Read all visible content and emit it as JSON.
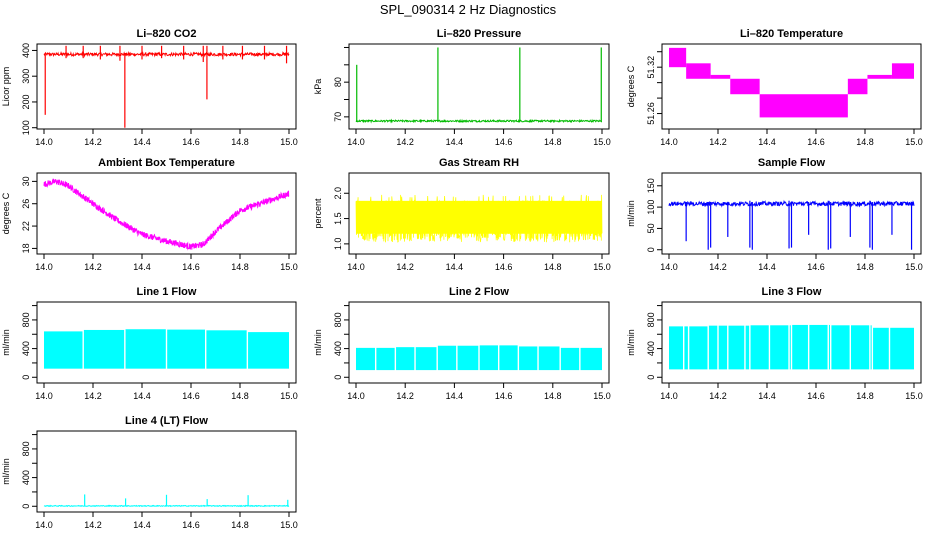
{
  "title": "SPL_090314  2 Hz Diagnostics",
  "x_range": [
    14.0,
    15.0
  ],
  "x_ticks": [
    "14.0",
    "14.2",
    "14.4",
    "14.6",
    "14.8",
    "15.0"
  ],
  "chart_data": [
    {
      "type": "line",
      "key": "co2",
      "title": "Li–820 CO2",
      "ylabel": "Licor ppm",
      "color": "#ff0000",
      "ylim": [
        95,
        425
      ],
      "yticks": [
        100,
        200,
        300,
        400
      ],
      "ytick_labels": [
        "100",
        "200",
        "300",
        "400"
      ],
      "base": 385,
      "noise": 6,
      "spikes": [
        {
          "x": 14.005,
          "lo": 150,
          "hi": 390
        },
        {
          "x": 14.09,
          "lo": 370,
          "hi": 418
        },
        {
          "x": 14.16,
          "lo": 370,
          "hi": 418
        },
        {
          "x": 14.23,
          "lo": 365,
          "hi": 418
        },
        {
          "x": 14.31,
          "lo": 360,
          "hi": 418
        },
        {
          "x": 14.33,
          "lo": 100,
          "hi": 390
        },
        {
          "x": 14.4,
          "lo": 365,
          "hi": 418
        },
        {
          "x": 14.48,
          "lo": 370,
          "hi": 418
        },
        {
          "x": 14.57,
          "lo": 365,
          "hi": 418
        },
        {
          "x": 14.65,
          "lo": 355,
          "hi": 418
        },
        {
          "x": 14.665,
          "lo": 210,
          "hi": 418
        },
        {
          "x": 14.73,
          "lo": 365,
          "hi": 418
        },
        {
          "x": 14.81,
          "lo": 365,
          "hi": 418
        },
        {
          "x": 14.9,
          "lo": 365,
          "hi": 418
        },
        {
          "x": 14.99,
          "lo": 350,
          "hi": 418
        }
      ]
    },
    {
      "type": "line",
      "key": "pressure",
      "title": "Li–820 Pressure",
      "ylabel": "kPa",
      "color": "#00bb00",
      "ylim": [
        66.5,
        91
      ],
      "yticks": [
        70,
        75,
        80,
        85,
        90
      ],
      "ytick_labels": [
        "70",
        "",
        "80",
        "",
        ""
      ],
      "base": 68.8,
      "noise": 0.25,
      "spikes": [
        {
          "x": 14.003,
          "lo": 68.5,
          "hi": 85
        },
        {
          "x": 14.333,
          "lo": 68.5,
          "hi": 90
        },
        {
          "x": 14.666,
          "lo": 68.5,
          "hi": 90
        },
        {
          "x": 14.997,
          "lo": 68.5,
          "hi": 90
        }
      ]
    },
    {
      "type": "band",
      "key": "li_temp",
      "title": "Li–820 Temperature",
      "ylabel": "degrees C",
      "color": "#ff00ff",
      "ylim": [
        51.24,
        51.35
      ],
      "yticks": [
        51.26,
        51.28,
        51.3,
        51.32,
        51.34
      ],
      "ytick_labels": [
        "51.26",
        "",
        "",
        "51.32",
        ""
      ],
      "bands": [
        {
          "x0": 14.0,
          "x1": 14.07,
          "lo": 51.32,
          "hi": 51.345
        },
        {
          "x0": 14.07,
          "x1": 14.17,
          "lo": 51.305,
          "hi": 51.325
        },
        {
          "x0": 14.17,
          "x1": 14.25,
          "lo": 51.305,
          "hi": 51.31
        },
        {
          "x0": 14.25,
          "x1": 14.37,
          "lo": 51.285,
          "hi": 51.305
        },
        {
          "x0": 14.37,
          "x1": 14.73,
          "lo": 51.255,
          "hi": 51.285
        },
        {
          "x0": 14.73,
          "x1": 14.81,
          "lo": 51.285,
          "hi": 51.305
        },
        {
          "x0": 14.81,
          "x1": 14.91,
          "lo": 51.305,
          "hi": 51.31
        },
        {
          "x0": 14.91,
          "x1": 15.0,
          "lo": 51.305,
          "hi": 51.325
        }
      ]
    },
    {
      "type": "curve",
      "key": "box_temp",
      "title": "Ambient Box Temperature",
      "ylabel": "degrees C",
      "color": "#ff00ff",
      "ylim": [
        17,
        31.5
      ],
      "yticks": [
        18,
        22,
        26,
        30
      ],
      "ytick_labels": [
        "18",
        "22",
        "26",
        "30"
      ],
      "noise": 0.55,
      "points": [
        [
          14.0,
          29.5
        ],
        [
          14.05,
          30.0
        ],
        [
          14.1,
          29.2
        ],
        [
          14.2,
          26.0
        ],
        [
          14.3,
          23.0
        ],
        [
          14.4,
          20.5
        ],
        [
          14.5,
          19.3
        ],
        [
          14.6,
          18.3
        ],
        [
          14.65,
          18.7
        ],
        [
          14.7,
          21.0
        ],
        [
          14.8,
          24.8
        ],
        [
          14.9,
          26.3
        ],
        [
          15.0,
          27.8
        ]
      ]
    },
    {
      "type": "noise",
      "key": "rh",
      "title": "Gas Stream RH",
      "ylabel": "percent",
      "color": "#ffff00",
      "ylim": [
        0.8,
        2.4
      ],
      "yticks": [
        1.0,
        1.5,
        2.0
      ],
      "ytick_labels": [
        "1.0",
        "1.5",
        "2.0"
      ],
      "lo": 0.98,
      "hi": 1.97,
      "core_lo": 1.2,
      "core_hi": 1.85
    },
    {
      "type": "line",
      "key": "sample_flow",
      "title": "Sample Flow",
      "ylabel": "ml/min",
      "color": "#0000ff",
      "ylim": [
        -10,
        180
      ],
      "yticks": [
        0,
        50,
        100,
        150
      ],
      "ytick_labels": [
        "0",
        "50",
        "100",
        "150"
      ],
      "base": 108,
      "noise": 5,
      "spikes": [
        {
          "x": 14.07,
          "lo": 20,
          "hi": 112
        },
        {
          "x": 14.16,
          "lo": 0,
          "hi": 112
        },
        {
          "x": 14.17,
          "lo": 5,
          "hi": 112
        },
        {
          "x": 14.24,
          "lo": 30,
          "hi": 112
        },
        {
          "x": 14.33,
          "lo": 5,
          "hi": 115
        },
        {
          "x": 14.34,
          "lo": 0,
          "hi": 112
        },
        {
          "x": 14.49,
          "lo": 3,
          "hi": 115
        },
        {
          "x": 14.5,
          "lo": 5,
          "hi": 112
        },
        {
          "x": 14.57,
          "lo": 35,
          "hi": 112
        },
        {
          "x": 14.65,
          "lo": 0,
          "hi": 115
        },
        {
          "x": 14.66,
          "lo": 3,
          "hi": 112
        },
        {
          "x": 14.74,
          "lo": 30,
          "hi": 112
        },
        {
          "x": 14.82,
          "lo": 5,
          "hi": 115
        },
        {
          "x": 14.83,
          "lo": 0,
          "hi": 112
        },
        {
          "x": 14.91,
          "lo": 35,
          "hi": 112
        },
        {
          "x": 14.99,
          "lo": 0,
          "hi": 112
        }
      ]
    },
    {
      "type": "block",
      "key": "line1",
      "title": "Line 1 Flow",
      "ylabel": "ml/min",
      "color": "#00ffff",
      "ylim": [
        -80,
        1050
      ],
      "yticks": [
        0,
        200,
        400,
        600,
        800,
        1000
      ],
      "ytick_labels": [
        "0",
        "",
        "400",
        "",
        "800",
        ""
      ],
      "lo": 120,
      "tops": [
        {
          "x0": 14.0,
          "x1": 14.16,
          "hi": 640
        },
        {
          "x0": 14.16,
          "x1": 14.33,
          "hi": 660
        },
        {
          "x0": 14.33,
          "x1": 14.5,
          "hi": 670
        },
        {
          "x0": 14.5,
          "x1": 14.66,
          "hi": 665
        },
        {
          "x0": 14.66,
          "x1": 14.83,
          "hi": 655
        },
        {
          "x0": 14.83,
          "x1": 15.0,
          "hi": 630
        }
      ],
      "gaps": [
        14.16,
        14.33,
        14.5,
        14.66,
        14.83
      ]
    },
    {
      "type": "block",
      "key": "line2",
      "title": "Line 2 Flow",
      "ylabel": "ml/min",
      "color": "#00ffff",
      "ylim": [
        -80,
        1050
      ],
      "yticks": [
        0,
        200,
        400,
        600,
        800,
        1000
      ],
      "ytick_labels": [
        "0",
        "",
        "400",
        "",
        "800",
        ""
      ],
      "lo": 100,
      "tops": [
        {
          "x0": 14.0,
          "x1": 14.16,
          "hi": 410
        },
        {
          "x0": 14.16,
          "x1": 14.33,
          "hi": 420
        },
        {
          "x0": 14.33,
          "x1": 14.5,
          "hi": 440
        },
        {
          "x0": 14.5,
          "x1": 14.66,
          "hi": 445
        },
        {
          "x0": 14.66,
          "x1": 14.83,
          "hi": 430
        },
        {
          "x0": 14.83,
          "x1": 15.0,
          "hi": 410
        }
      ],
      "gaps": [
        14.08,
        14.16,
        14.24,
        14.33,
        14.41,
        14.5,
        14.58,
        14.66,
        14.74,
        14.83,
        14.91
      ]
    },
    {
      "type": "block",
      "key": "line3",
      "title": "Line 3 Flow",
      "ylabel": "ml/min",
      "color": "#00ffff",
      "ylim": [
        -80,
        1050
      ],
      "yticks": [
        0,
        200,
        400,
        600,
        800,
        1000
      ],
      "ytick_labels": [
        "0",
        "",
        "400",
        "",
        "800",
        ""
      ],
      "lo": 110,
      "tops": [
        {
          "x0": 14.0,
          "x1": 14.16,
          "hi": 710
        },
        {
          "x0": 14.16,
          "x1": 14.33,
          "hi": 720
        },
        {
          "x0": 14.33,
          "x1": 14.5,
          "hi": 725
        },
        {
          "x0": 14.5,
          "x1": 14.66,
          "hi": 730
        },
        {
          "x0": 14.66,
          "x1": 14.83,
          "hi": 725
        },
        {
          "x0": 14.83,
          "x1": 15.0,
          "hi": 690
        }
      ],
      "gaps": [
        14.06,
        14.08,
        14.16,
        14.2,
        14.24,
        14.31,
        14.33,
        14.41,
        14.49,
        14.5,
        14.57,
        14.65,
        14.66,
        14.74,
        14.82,
        14.83,
        14.9
      ]
    },
    {
      "type": "line",
      "key": "line4",
      "title": "Line 4 (LT) Flow",
      "ylabel": "ml/min",
      "color": "#00ffff",
      "ylim": [
        -80,
        1050
      ],
      "yticks": [
        0,
        200,
        400,
        600,
        800,
        1000
      ],
      "ytick_labels": [
        "0",
        "",
        "400",
        "",
        "800",
        ""
      ],
      "base": 5,
      "noise": 6,
      "spikes": [
        {
          "x": 14.166,
          "lo": 0,
          "hi": 165
        },
        {
          "x": 14.333,
          "lo": 0,
          "hi": 110
        },
        {
          "x": 14.5,
          "lo": 0,
          "hi": 160
        },
        {
          "x": 14.666,
          "lo": 0,
          "hi": 100
        },
        {
          "x": 14.833,
          "lo": 0,
          "hi": 155
        },
        {
          "x": 14.995,
          "lo": 0,
          "hi": 90
        }
      ]
    }
  ]
}
